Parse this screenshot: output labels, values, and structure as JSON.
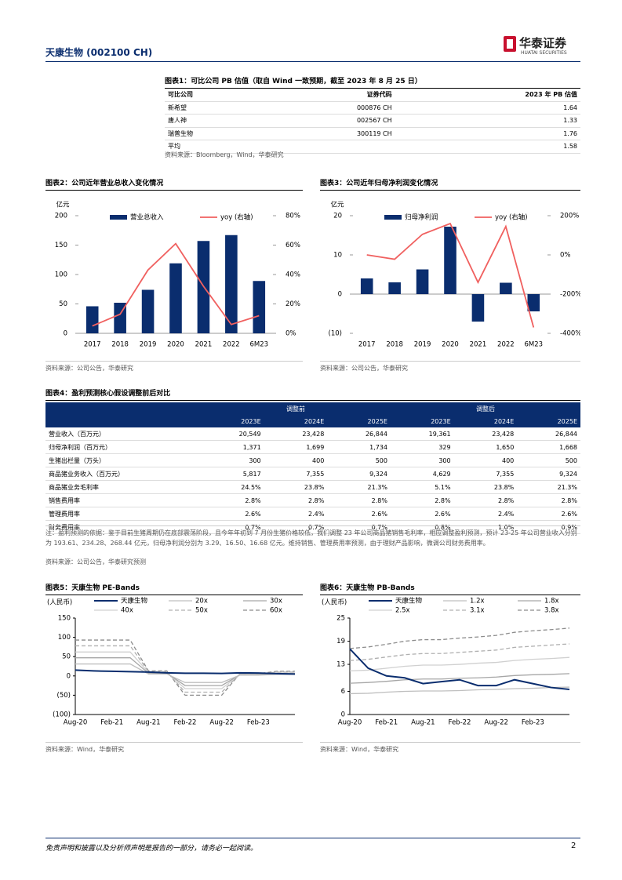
{
  "header": {
    "company": "天康生物 (002100 CH)",
    "logo": "华泰证券",
    "logo_en": "HUATAI SECURITIES"
  },
  "table1": {
    "title": "图表1：可比公司 PB 估值（取自 Wind 一致预期，截至 2023 年 8 月 25 日）",
    "columns": [
      "可比公司",
      "证券代码",
      "2023 年 PB 估值"
    ],
    "rows": [
      {
        "name": "新希望",
        "code": "000876 CH",
        "pb": "1.64"
      },
      {
        "name": "唐人神",
        "code": "002567 CH",
        "pb": "1.33"
      },
      {
        "name": "瑞普生物",
        "code": "300119 CH",
        "pb": "1.76"
      }
    ],
    "average": {
      "label": "平均",
      "pb": "1.58"
    },
    "source": "资料来源：Bloomberg，Wind，华泰研究"
  },
  "chart_data": [
    {
      "type": "bar",
      "title": "图表2：公司近年营业总收入变化情况",
      "y_label": "亿元",
      "categories": [
        "2017",
        "2018",
        "2019",
        "2020",
        "2021",
        "2022",
        "6M23"
      ],
      "series": [
        {
          "name": "营业总收入",
          "color": "#0a2d6e",
          "values": [
            46,
            52,
            74,
            119,
            157,
            167,
            89
          ]
        },
        {
          "name": "yoy (右轴)",
          "type": "line",
          "axis": "y2",
          "color": "#f0605f",
          "values": [
            5,
            13,
            43,
            61,
            32,
            6,
            12
          ]
        }
      ],
      "ylim": [
        0,
        200
      ],
      "yticks": [
        0,
        50,
        100,
        150,
        200
      ],
      "y2lim": [
        0,
        80
      ],
      "y2ticks": [
        {
          "value": 0,
          "label": "0%"
        },
        {
          "value": 20,
          "label": "20%"
        },
        {
          "value": 40,
          "label": "40%"
        },
        {
          "value": 60,
          "label": "60%"
        },
        {
          "value": 80,
          "label": "80%"
        }
      ],
      "source": "资料来源：公司公告，华泰研究"
    },
    {
      "type": "bar",
      "title": "图表3：公司近年归母净利润变化情况",
      "y_label": "亿元",
      "categories": [
        "2017",
        "2018",
        "2019",
        "2020",
        "2021",
        "2022",
        "6M23"
      ],
      "series": [
        {
          "name": "归母净利润",
          "color": "#0a2d6e",
          "values": [
            4,
            3,
            6.3,
            17.2,
            -7,
            2.9,
            -4.4
          ]
        },
        {
          "name": "yoy (右轴)",
          "type": "line",
          "axis": "y2",
          "color": "#f0605f",
          "values": [
            0,
            -22,
            105,
            160,
            -140,
            145,
            -370
          ]
        }
      ],
      "ylim": [
        -10,
        20
      ],
      "yticks": [
        {
          "value": -10,
          "label": "(10)"
        },
        0,
        10,
        20
      ],
      "y2lim": [
        -400,
        200
      ],
      "y2ticks": [
        {
          "value": -400,
          "label": "-400%"
        },
        {
          "value": -200,
          "label": "-200%"
        },
        {
          "value": 0,
          "label": "0%"
        },
        {
          "value": 200,
          "label": "200%"
        }
      ],
      "source": "资料来源：公司公告，华泰研究"
    },
    {
      "type": "line",
      "title": "图表5：天康生物 PE-Bands",
      "y_label": "(人民币)",
      "categories": [
        "Aug-20",
        null,
        "Feb-21",
        null,
        "Aug-21",
        null,
        "Feb-22",
        null,
        "Aug-22",
        null,
        "Feb-23",
        null,
        null
      ],
      "series": [
        {
          "name": "天康生物",
          "color": "#0a2d6e",
          "values": [
            15,
            13,
            12,
            11,
            10,
            8,
            7,
            7,
            6.5,
            8,
            7.5,
            6,
            5
          ]
        },
        {
          "name": "20x",
          "color": "#bfbfbf",
          "values": [
            31,
            31,
            31,
            31,
            5,
            5,
            -17,
            -17,
            -17,
            2,
            2,
            4,
            4
          ]
        },
        {
          "name": "30x",
          "color": "#a6a6a6",
          "values": [
            47,
            47,
            47,
            47,
            7,
            7,
            -25,
            -25,
            -25,
            3,
            3,
            6,
            6
          ]
        },
        {
          "name": "40x",
          "color": "#d0d0d0",
          "values": [
            62,
            62,
            62,
            62,
            9,
            9,
            -33,
            -33,
            -33,
            4,
            4,
            8,
            8
          ]
        },
        {
          "name": "50x",
          "color": "#b0b0b0",
          "dash": true,
          "values": [
            78,
            78,
            78,
            78,
            11,
            11,
            -42,
            -42,
            -42,
            5,
            5,
            10,
            10
          ]
        },
        {
          "name": "60x",
          "color": "#8c8c8c",
          "dash": true,
          "values": [
            93,
            93,
            93,
            93,
            13,
            13,
            -50,
            -50,
            -50,
            6,
            6,
            12,
            12
          ]
        }
      ],
      "ylim": [
        -100,
        150
      ],
      "yticks": [
        {
          "value": -100,
          "label": "(100)"
        },
        {
          "value": -50,
          "label": "(50)"
        },
        0,
        50,
        100,
        150
      ],
      "source": "资料来源：Wind，华泰研究"
    },
    {
      "type": "line",
      "title": "图表6：天康生物 PB-Bands",
      "y_label": "(人民币)",
      "categories": [
        "Aug-20",
        null,
        "Feb-21",
        null,
        "Aug-21",
        null,
        "Feb-22",
        null,
        "Aug-22",
        null,
        "Feb-23",
        null,
        null
      ],
      "series": [
        {
          "name": "天康生物",
          "color": "#0a2d6e",
          "values": [
            17,
            12,
            10,
            9.5,
            8,
            8.5,
            9,
            7.5,
            7.5,
            9,
            8,
            7,
            6.5
          ]
        },
        {
          "name": "1.2x",
          "color": "#bfbfbf",
          "values": [
            5.4,
            5.5,
            5.8,
            6,
            6.1,
            6.1,
            6.2,
            6.4,
            6.5,
            6.7,
            6.8,
            7,
            7.1
          ]
        },
        {
          "name": "1.8x",
          "color": "#a6a6a6",
          "values": [
            8.1,
            8.3,
            8.6,
            9,
            9.2,
            9.2,
            9.4,
            9.5,
            9.7,
            10.1,
            10.3,
            10.4,
            10.6
          ]
        },
        {
          "name": "2.5x",
          "color": "#d0d0d0",
          "values": [
            11.3,
            11.5,
            12,
            12.5,
            12.8,
            12.8,
            13,
            13.3,
            13.5,
            14,
            14.3,
            14.5,
            14.8
          ]
        },
        {
          "name": "3.1x",
          "color": "#b0b0b0",
          "dash": true,
          "values": [
            14,
            14.3,
            14.9,
            15.5,
            15.8,
            15.8,
            16.1,
            16.4,
            16.7,
            17.4,
            17.7,
            18,
            18.3
          ]
        },
        {
          "name": "3.8x",
          "color": "#8c8c8c",
          "dash": true,
          "values": [
            17.1,
            17.5,
            18.2,
            19,
            19.4,
            19.4,
            19.8,
            20.1,
            20.5,
            21.3,
            21.7,
            22,
            22.4
          ]
        }
      ],
      "ylim": [
        0,
        25
      ],
      "yticks": [
        0,
        6,
        13,
        19,
        25
      ],
      "source": "资料来源：Wind，华泰研究"
    }
  ],
  "table4": {
    "title": "图表4：盈利预测核心假设调整前后对比",
    "groups": [
      "调整前",
      "调整后"
    ],
    "years": [
      "2023E",
      "2024E",
      "2025E",
      "2023E",
      "2024E",
      "2025E"
    ],
    "rows": [
      {
        "label": "营业收入（百万元）",
        "values": [
          "20,549",
          "23,428",
          "26,844",
          "19,361",
          "23,428",
          "26,844"
        ]
      },
      {
        "label": "归母净利润（百万元）",
        "values": [
          "1,371",
          "1,699",
          "1,734",
          "329",
          "1,650",
          "1,668"
        ]
      },
      {
        "label": "生猪出栏量（万头）",
        "values": [
          "300",
          "400",
          "500",
          "300",
          "400",
          "500"
        ]
      },
      {
        "label": "商品猪业务收入（百万元）",
        "values": [
          "5,817",
          "7,355",
          "9,324",
          "4,629",
          "7,355",
          "9,324"
        ]
      },
      {
        "label": "商品猪业务毛利率",
        "values": [
          "24.5%",
          "23.8%",
          "21.3%",
          "5.1%",
          "23.8%",
          "21.3%"
        ]
      },
      {
        "label": "销售费用率",
        "values": [
          "2.8%",
          "2.8%",
          "2.8%",
          "2.8%",
          "2.8%",
          "2.8%"
        ]
      },
      {
        "label": "管理费用率",
        "values": [
          "2.6%",
          "2.4%",
          "2.6%",
          "2.6%",
          "2.4%",
          "2.6%"
        ]
      },
      {
        "label": "财务费用率",
        "values": [
          "0.7%",
          "0.7%",
          "0.7%",
          "0.8%",
          "1.0%",
          "0.9%"
        ]
      }
    ],
    "note": "注：盈利预测的依据：鉴于目前生猪周期仍在底部震荡阶段，且今年年初到 7 月份生猪价格较低，我们调整 23 年公司商品猪销售毛利率，相应调整盈利预测，预计 23-25 年公司营业收入分别为 193.61、234.28、268.44 亿元，归母净利润分别为 3.29、16.50、16.68 亿元。维持销售、管理费用率预测，由于理财产品影响，微调公司财务费用率。",
    "source": "资料来源：公司公告，华泰研究预测"
  },
  "footer": {
    "disclaimer": "免责声明和披露以及分析师声明是报告的一部分，请务必一起阅读。",
    "page": "2"
  }
}
